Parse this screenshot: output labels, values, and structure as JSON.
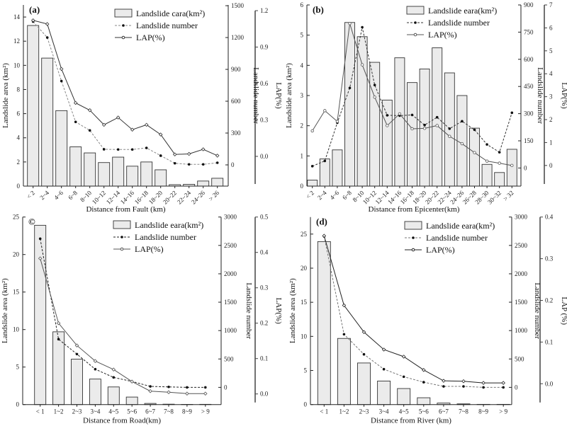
{
  "chart_data": [
    {
      "panel_label": "(a)",
      "type": "bar+line",
      "xlabel": "Distance from Fault (km)",
      "ylabel": "Landslide area (km²)",
      "y2label": "Landslide number",
      "y3label": "LAP(%)",
      "categories": [
        "< 2",
        "2~4",
        "4~6",
        "6~8",
        "8~10",
        "10~12",
        "12~14",
        "14~16",
        "16~18",
        "18~20",
        "20~22",
        "22~24",
        "24~26",
        "> 26"
      ],
      "ylim": [
        0,
        15
      ],
      "yticks": [
        0,
        2,
        4,
        6,
        8,
        10,
        12,
        14
      ],
      "yticklabels": [
        "0",
        "2",
        "4",
        "6",
        "8",
        "10",
        "12",
        "14"
      ],
      "y2lim": [
        -200,
        1507
      ],
      "y2ticks": [
        0,
        300,
        600,
        900,
        1200,
        1500
      ],
      "y2ticklabels": [
        "0",
        "300",
        "600",
        "900",
        "1200",
        "1500"
      ],
      "y3lim": [
        -0.245,
        1.247
      ],
      "y3ticks": [
        0,
        0.3,
        0.6,
        0.9,
        1.2
      ],
      "y3ticklabels": [
        "0.0",
        "0.3",
        "0.6",
        "0.9",
        "1.2"
      ],
      "series": [
        {
          "name": "Landslide cara(km²)",
          "kind": "bar",
          "axis": "left",
          "values": [
            13.3,
            10.6,
            6.25,
            3.25,
            2.75,
            1.95,
            2.4,
            1.65,
            2.0,
            1.35,
            0.12,
            0.15,
            0.42,
            0.65
          ]
        },
        {
          "name": "Landslide number",
          "kind": "line-dot",
          "axis": "number",
          "values": [
            1350,
            1200,
            790,
            405,
            325,
            147,
            145,
            145,
            160,
            87,
            15,
            5,
            5,
            20
          ]
        },
        {
          "name": "LAP(%)",
          "kind": "line-diamond",
          "axis": "lap",
          "values": [
            1.12,
            1.09,
            0.72,
            0.44,
            0.38,
            0.26,
            0.32,
            0.22,
            0.26,
            0.18,
            0.016,
            0.02,
            0.058,
            0.006
          ]
        }
      ],
      "colors": {
        "bar_fill": "#ebebeb",
        "bar_stroke": "#333333",
        "number_line": "#888888",
        "lap_line": "#333333"
      }
    },
    {
      "panel_label": "(b)",
      "type": "bar+line",
      "xlabel": "Distance from Epicenter(km)",
      "ylabel": "Landslide area (km²)",
      "y2label": "Landslide number",
      "y3label": "LAP(%)",
      "categories": [
        "< 2",
        "2~4",
        "4~6",
        "6~8",
        "8~10",
        "10~12",
        "12~14",
        "14~16",
        "16~18",
        "18~20",
        "20~22",
        "22~24",
        "24~26",
        "26~28",
        "28~30",
        "30~32",
        "> 32"
      ],
      "ylim": [
        0,
        6
      ],
      "yticks": [
        0,
        1,
        2,
        3,
        4,
        5,
        6
      ],
      "yticklabels": [
        "0",
        "1",
        "2",
        "3",
        "4",
        "5",
        "6"
      ],
      "y2lim": [
        -100,
        900
      ],
      "y2ticks": [
        0,
        150,
        300,
        450,
        600,
        750,
        900
      ],
      "y2ticklabels": [
        "0",
        "150",
        "300",
        "450",
        "600",
        "750",
        "900"
      ],
      "y3lim": [
        -0.9,
        7
      ],
      "y3ticks": [
        0,
        1,
        2,
        3,
        4,
        5,
        6,
        7
      ],
      "y3ticklabels": [
        "0",
        "1",
        "2",
        "3",
        "4",
        "5",
        "6",
        "7"
      ],
      "series": [
        {
          "name": "Landslide eara(km²)",
          "kind": "bar",
          "axis": "left",
          "values": [
            0.2,
            0.9,
            1.2,
            5.42,
            4.95,
            4.1,
            2.85,
            4.25,
            3.43,
            3.88,
            4.58,
            3.75,
            3.0,
            1.92,
            0.72,
            0.45,
            1.22
          ]
        },
        {
          "name": "Landslide number",
          "kind": "line-dot",
          "axis": "number",
          "values": [
            10,
            39,
            250,
            442,
            777,
            458,
            291,
            289,
            293,
            237,
            280,
            217,
            258,
            211,
            130,
            87,
            305
          ]
        },
        {
          "name": "LAP(%)",
          "kind": "line-circle",
          "axis": "lap",
          "values": [
            1.51,
            2.39,
            1.92,
            6.19,
            4.39,
            2.98,
            1.74,
            2.25,
            1.6,
            1.62,
            1.74,
            1.27,
            0.95,
            0.56,
            0.19,
            0.1,
            0.0
          ]
        }
      ],
      "colors": {
        "bar_fill": "#ebebeb",
        "bar_stroke": "#333333",
        "number_line": "#333333",
        "lap_line": "#555555"
      }
    },
    {
      "panel_label": "©",
      "type": "bar+line",
      "xlabel": "Distance from Road(km)",
      "ylabel": "Landslide area (km²)",
      "y2label": "Landslide number",
      "y3label": "LAP(%)",
      "categories": [
        "< 1",
        "1~2",
        "2~3",
        "3~4",
        "4~5",
        "5~6",
        "6~7",
        "7~8",
        "8~9",
        "> 9"
      ],
      "ylim": [
        0,
        25
      ],
      "yticks": [
        0,
        5,
        10,
        15,
        20,
        25
      ],
      "yticklabels": [
        "0",
        "5",
        "10",
        "15",
        "20",
        "25"
      ],
      "y2lim": [
        -303,
        3000
      ],
      "y2ticks": [
        0,
        500,
        1000,
        1500,
        2000,
        2500,
        3000
      ],
      "y2ticklabels": [
        "0",
        "500",
        "1000",
        "1500",
        "2000",
        "2500",
        "3000"
      ],
      "y3lim": [
        -0.03,
        0.5
      ],
      "y3ticks": [
        0,
        0.1,
        0.2,
        0.3,
        0.4,
        0.5
      ],
      "y3ticklabels": [
        "0.0",
        "0.1",
        "0.2",
        "0.3",
        "0.4",
        "0.5"
      ],
      "series": [
        {
          "name": "Landslide eara(km²)",
          "kind": "bar",
          "axis": "left",
          "values": [
            23.9,
            9.7,
            6.05,
            3.4,
            2.35,
            1.0,
            0.15,
            0.05,
            0.02,
            0.03
          ]
        },
        {
          "name": "Landslide number",
          "kind": "line-dot",
          "axis": "number",
          "values": [
            2618,
            848,
            586,
            320,
            175,
            104,
            17,
            8,
            0,
            0
          ]
        },
        {
          "name": "LAP(%)",
          "kind": "line-diamond",
          "axis": "lap",
          "values": [
            0.383,
            0.2,
            0.137,
            0.093,
            0.069,
            0.035,
            0.008,
            0.005,
            0.001,
            0.001
          ]
        }
      ],
      "colors": {
        "bar_fill": "#ebebeb",
        "bar_stroke": "#333333",
        "number_line": "#222222",
        "lap_line": "#555555"
      }
    },
    {
      "panel_label": "(d)",
      "type": "bar+line",
      "xlabel": "Distance from River (km)",
      "ylabel": "Landslide area (km²)",
      "y2label": "Landslide number",
      "y3label": "LAP (%)",
      "categories": [
        "< 1",
        "1~2",
        "2~3",
        "3~4",
        "4~5",
        "5~6",
        "6~7",
        "7~8",
        "8~9",
        "> 9"
      ],
      "ylim": [
        0,
        27.5
      ],
      "yticks": [
        0,
        5,
        10,
        15,
        20,
        25
      ],
      "yticklabels": [
        "0",
        "5",
        "10",
        "15",
        "20",
        "25"
      ],
      "y2lim": [
        -303,
        3000
      ],
      "y2ticks": [
        0,
        500,
        1000,
        1500,
        2000,
        2500,
        3000
      ],
      "y2ticklabels": [
        "0",
        "500",
        "1000",
        "1500",
        "2000",
        "2500",
        "3000"
      ],
      "y3lim": [
        -0.05,
        0.4
      ],
      "y3ticks": [
        0,
        0.1,
        0.2,
        0.3,
        0.4
      ],
      "y3ticklabels": [
        "0.0",
        "0.1",
        "0.2",
        "0.3",
        "0.4"
      ],
      "series": [
        {
          "name": "Landslide eara(km²)",
          "kind": "bar",
          "axis": "left",
          "values": [
            23.9,
            9.7,
            6.1,
            3.45,
            2.35,
            1.0,
            0.22,
            0.1,
            0.03,
            0.03
          ]
        },
        {
          "name": "Landslide number",
          "kind": "line-dot",
          "axis": "number",
          "values": [
            2660,
            935,
            582,
            320,
            187,
            91,
            17,
            17,
            0,
            0
          ]
        },
        {
          "name": "LAP(%)",
          "kind": "line-diamond",
          "axis": "lap",
          "values": [
            0.355,
            0.188,
            0.124,
            0.082,
            0.065,
            0.033,
            0.007,
            0.006,
            0.002,
            0.002
          ]
        }
      ],
      "colors": {
        "bar_fill": "#ebebeb",
        "bar_stroke": "#333333",
        "number_line": "#777777",
        "lap_line": "#222222"
      }
    }
  ]
}
